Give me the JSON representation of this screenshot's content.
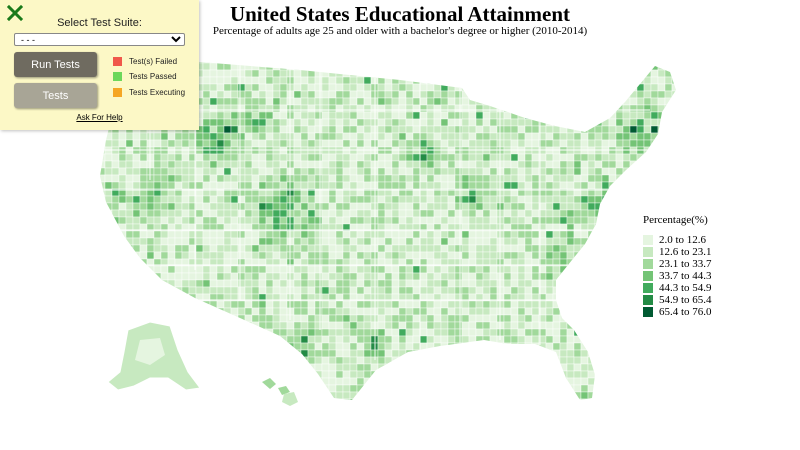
{
  "map": {
    "title": "United States Educational Attainment",
    "subtitle": "Percentage of adults age 25 and older with a bachelor's degree or higher (2010-2014)",
    "legend": {
      "title": "Percentage(%)",
      "bins": [
        {
          "label": "2.0 to 12.6",
          "color": "#e5f5e0"
        },
        {
          "label": "12.6 to 23.1",
          "color": "#c7e9c0"
        },
        {
          "label": "23.1 to 33.7",
          "color": "#a1d99b"
        },
        {
          "label": "33.7 to 44.3",
          "color": "#74c476"
        },
        {
          "label": "44.3 to 54.9",
          "color": "#41ab5d"
        },
        {
          "label": "54.9 to 65.4",
          "color": "#238b45"
        },
        {
          "label": "65.4 to 76.0",
          "color": "#005a32"
        }
      ]
    }
  },
  "panel": {
    "close_icon": "close-x-icon",
    "suite_label": "Select Test Suite:",
    "suite_selected": "- - -",
    "run_button": "Run Tests",
    "tests_button": "Tests",
    "statuses": [
      {
        "label": "Test(s) Failed",
        "color": "#f0584a"
      },
      {
        "label": "Tests Passed",
        "color": "#6cd75a"
      },
      {
        "label": "Tests Executing",
        "color": "#f5a623"
      }
    ],
    "help_link": "Ask For Help"
  }
}
